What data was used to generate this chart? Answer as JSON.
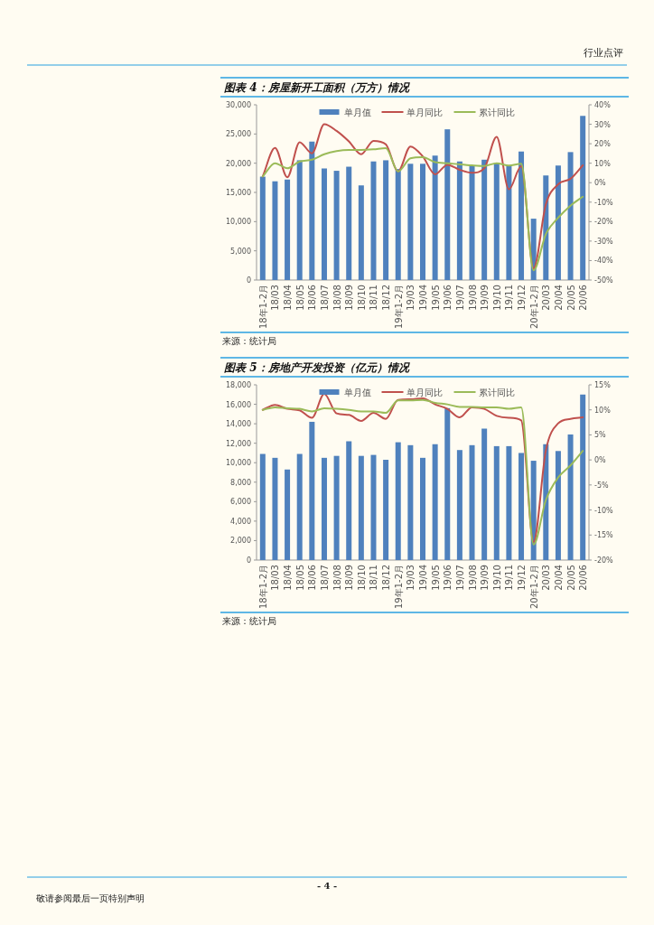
{
  "chart_data": [
    {
      "type": "bar",
      "title": "图表 4：房屋新开工面积（万方）情况",
      "categories": [
        "18年1-2月",
        "18/03",
        "18/04",
        "18/05",
        "18/06",
        "18/07",
        "18/08",
        "18/09",
        "18/10",
        "18/11",
        "18/12",
        "19年1-2月",
        "19/03",
        "19/04",
        "19/05",
        "19/06",
        "19/07",
        "19/08",
        "19/09",
        "19/10",
        "19/11",
        "19/12",
        "20年1-2月",
        "20/03",
        "20/04",
        "20/05",
        "20/06"
      ],
      "series": [
        {
          "name": "单月值",
          "color": "#4f81bd",
          "values": [
            17700,
            16900,
            17200,
            20500,
            23700,
            19100,
            18700,
            19400,
            16200,
            20300,
            20500,
            19000,
            19900,
            19900,
            21300,
            25800,
            20300,
            19600,
            20600,
            20000,
            19500,
            22000,
            10500,
            17900,
            19600,
            21900,
            28100
          ]
        },
        {
          "name": "单月同比",
          "type": "line",
          "axis": "y2",
          "color": "#c0504d",
          "values": [
            3.2,
            17.8,
            2.8,
            20.8,
            15.1,
            30.0,
            26.6,
            21.2,
            14.6,
            21.5,
            19.7,
            5.8,
            18.6,
            13.5,
            4.3,
            9.2,
            6.6,
            5.1,
            7.4,
            23.5,
            -3.4,
            8.5,
            -44,
            -11.1,
            -0.8,
            2.0,
            8.9
          ]
        },
        {
          "name": "累计同比",
          "type": "line",
          "axis": "y2",
          "color": "#9bbb59",
          "values": [
            3.2,
            10.0,
            7.4,
            10.9,
            11.8,
            14.6,
            16.2,
            16.8,
            16.8,
            17.1,
            17.7,
            5.8,
            12.5,
            13.1,
            10.5,
            10.0,
            9.4,
            8.9,
            8.6,
            10.0,
            8.8,
            9.7,
            -45,
            -26.4,
            -18.0,
            -11.8,
            -7.2
          ]
        }
      ],
      "ylim": [
        0,
        30000
      ],
      "yticks": [
        0,
        {
          "value": 5000,
          "label": "5,000"
        },
        {
          "value": 10000,
          "label": "10,000"
        },
        {
          "value": 15000,
          "label": "15,000"
        },
        {
          "value": 20000,
          "label": "20,000"
        },
        {
          "value": 25000,
          "label": "25,000"
        },
        {
          "value": 30000,
          "label": "30,000"
        }
      ],
      "y2lim": [
        -50,
        40
      ],
      "y2ticks": [
        {
          "value": -50,
          "label": "-50%"
        },
        {
          "value": -40,
          "label": "-40%"
        },
        {
          "value": -30,
          "label": "-30%"
        },
        {
          "value": -20,
          "label": "-20%"
        },
        {
          "value": -10,
          "label": "-10%"
        },
        {
          "value": 0,
          "label": "0%"
        },
        {
          "value": 10,
          "label": "10%"
        },
        {
          "value": 20,
          "label": "20%"
        },
        {
          "value": 30,
          "label": "30%"
        },
        {
          "value": 40,
          "label": "40%"
        }
      ],
      "legend": "top",
      "grid": false,
      "annotations": [
        "行业点评",
        "来源：统计局"
      ]
    },
    {
      "type": "bar",
      "title": "图表 5：房地产开发投资（亿元）情况",
      "categories": [
        "18年1-2月",
        "18/03",
        "18/04",
        "18/05",
        "18/06",
        "18/07",
        "18/08",
        "18/09",
        "18/10",
        "18/11",
        "18/12",
        "19年1-2月",
        "19/03",
        "19/04",
        "19/05",
        "19/06",
        "19/07",
        "19/08",
        "19/09",
        "19/10",
        "19/11",
        "19/12",
        "20年1-2月",
        "20/03",
        "20/04",
        "20/05",
        "20/06"
      ],
      "series": [
        {
          "name": "单月值",
          "color": "#4f81bd",
          "values": [
            10900,
            10500,
            9300,
            10900,
            14200,
            10500,
            10700,
            12200,
            10700,
            10800,
            10300,
            12100,
            11800,
            10500,
            11900,
            15600,
            11300,
            11800,
            13500,
            11700,
            11700,
            11000,
            10200,
            11900,
            11200,
            12900,
            17000
          ]
        },
        {
          "name": "单月同比",
          "type": "line",
          "axis": "y2",
          "color": "#c0504d",
          "values": [
            10.0,
            11.0,
            10.2,
            9.9,
            8.4,
            13.2,
            9.3,
            9.0,
            7.8,
            9.4,
            8.2,
            12.0,
            12.1,
            12.3,
            11.1,
            10.2,
            8.5,
            10.5,
            10.2,
            8.8,
            8.4,
            7.9,
            -16.4,
            1.9,
            7.3,
            8.2,
            8.5
          ]
        },
        {
          "name": "累计同比",
          "type": "line",
          "axis": "y2",
          "color": "#9bbb59",
          "values": [
            10.0,
            10.5,
            10.3,
            10.2,
            9.7,
            10.3,
            10.2,
            10.0,
            9.7,
            9.7,
            9.4,
            11.9,
            11.9,
            12.0,
            11.4,
            11.1,
            10.6,
            10.6,
            10.5,
            10.5,
            10.2,
            10.5,
            -16.9,
            -8.0,
            -3.5,
            -1.1,
            1.8
          ]
        }
      ],
      "ylim": [
        0,
        18000
      ],
      "yticks": [
        0,
        {
          "value": 2000,
          "label": "2,000"
        },
        {
          "value": 4000,
          "label": "4,000"
        },
        {
          "value": 6000,
          "label": "6,000"
        },
        {
          "value": 8000,
          "label": "8,000"
        },
        {
          "value": 10000,
          "label": "10,000"
        },
        {
          "value": 12000,
          "label": "12,000"
        },
        {
          "value": 14000,
          "label": "14,000"
        },
        {
          "value": 16000,
          "label": "16,000"
        },
        {
          "value": 18000,
          "label": "18,000"
        }
      ],
      "y2lim": [
        -20,
        15
      ],
      "y2ticks": [
        {
          "value": -20,
          "label": "-20%"
        },
        {
          "value": -15,
          "label": "-15%"
        },
        {
          "value": -10,
          "label": "-10%"
        },
        {
          "value": -5,
          "label": "-5%"
        },
        {
          "value": 0,
          "label": "0%"
        },
        {
          "value": 5,
          "label": "5%"
        },
        {
          "value": 10,
          "label": "10%"
        },
        {
          "value": 15,
          "label": "15%"
        }
      ],
      "legend": "top",
      "grid": false,
      "annotations": [
        "来源：统计局",
        "- 4 -",
        "敬请参阅最后一页特别声明"
      ]
    }
  ]
}
